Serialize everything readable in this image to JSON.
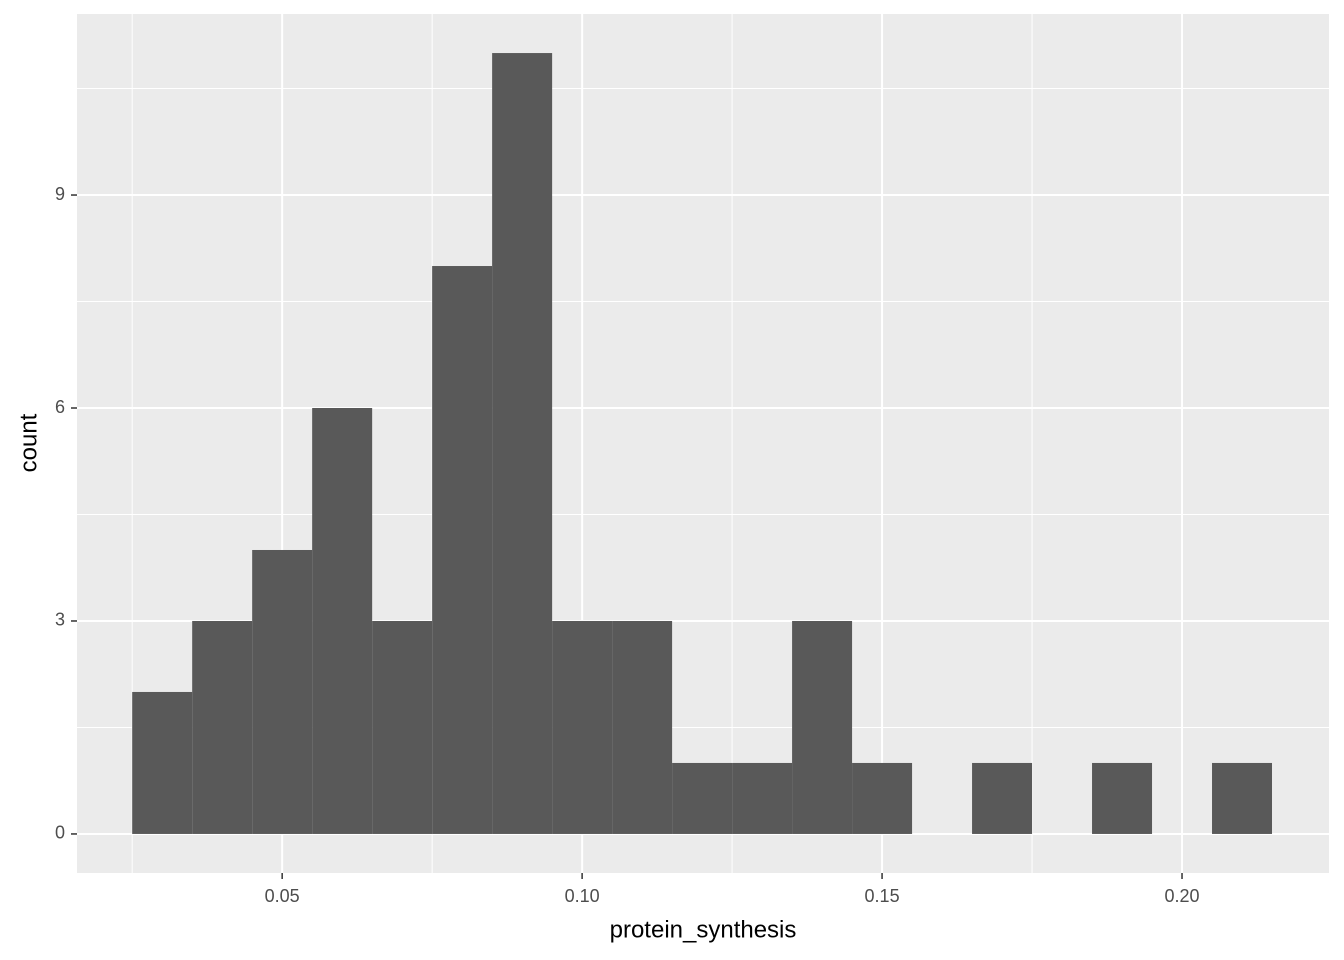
{
  "chart_data": {
    "type": "histogram",
    "x_label": "protein_synthesis",
    "y_label": "count",
    "bins": [
      0.025,
      0.035,
      0.045,
      0.055,
      0.065,
      0.075,
      0.085,
      0.095,
      0.105,
      0.115,
      0.125,
      0.135,
      0.145,
      0.155,
      0.165,
      0.175,
      0.185,
      0.195,
      0.205,
      0.215
    ],
    "values": [
      2,
      3,
      4,
      6,
      3,
      8,
      11,
      3,
      3,
      1,
      1,
      3,
      1,
      0,
      1,
      0,
      1,
      0,
      1
    ],
    "color": "#595959",
    "xlim": [
      0.0158,
      0.2245
    ],
    "xticks": [
      0.05,
      {
        "value": 0.1,
        "label": "0.10"
      },
      0.15,
      {
        "value": 0.2,
        "label": "0.20"
      }
    ],
    "ylim": [
      -0.55,
      11.55
    ],
    "yticks": [
      0,
      3,
      6,
      9
    ],
    "grid": true
  }
}
